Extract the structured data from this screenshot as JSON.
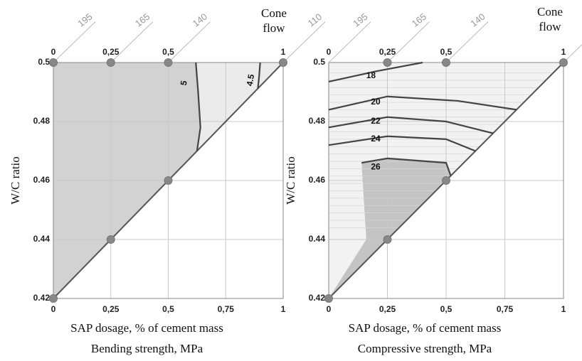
{
  "chart_data": [
    {
      "type": "contour",
      "title": "Bending strength, MPa",
      "x_label": "SAP dosage, % of cement mass",
      "y_label": "W/C ratio",
      "xlim": [
        0,
        1
      ],
      "ylim": [
        0.42,
        0.5
      ],
      "xticks": [
        0,
        {
          "value": 0.25,
          "label": "0,25"
        },
        {
          "value": 0.5,
          "label": "0,5"
        },
        {
          "value": 0.75,
          "label": "0,75"
        },
        1
      ],
      "top_ticks": [
        0,
        {
          "value": 0.25,
          "label": "0,25"
        },
        {
          "value": 0.5,
          "label": "0,5"
        },
        1
      ],
      "yticks": [
        0.42,
        0.44,
        0.46,
        0.48,
        0.5
      ],
      "cone_flow": {
        "label": "Cone flow",
        "ticks": [
          195,
          165,
          140,
          110
        ]
      },
      "levels": [
        5,
        4.5
      ],
      "points": {
        "x": [
          0,
          0.25,
          0.5,
          1,
          0.5,
          0.25,
          0
        ],
        "y": [
          0.5,
          0.5,
          0.5,
          0.5,
          0.46,
          0.44,
          0.42
        ]
      },
      "grid": true
    },
    {
      "type": "contour",
      "title": "Compressive strength, MPa",
      "x_label": "SAP dosage, % of cement mass",
      "y_label": "W/C ratio",
      "xlim": [
        0,
        1
      ],
      "ylim": [
        0.42,
        0.5
      ],
      "xticks": [
        0,
        {
          "value": 0.25,
          "label": "0,25"
        },
        {
          "value": 0.5,
          "label": "0,5"
        },
        {
          "value": 0.75,
          "label": "0,75"
        },
        1
      ],
      "top_ticks": [
        0,
        {
          "value": 0.25,
          "label": "0,25"
        },
        {
          "value": 0.5,
          "label": "0,5"
        },
        1
      ],
      "yticks": [
        0.42,
        0.44,
        0.46,
        0.48,
        0.5
      ],
      "cone_flow": {
        "label": "Cone flow",
        "ticks": [
          195,
          165,
          140,
          110
        ]
      },
      "levels": [
        18,
        20,
        22,
        24,
        26
      ],
      "points": {
        "x": [
          0.25,
          0.5,
          1,
          0.5,
          0.25,
          0
        ],
        "y": [
          0.5,
          0.5,
          0.5,
          0.46,
          0.44,
          0.42
        ]
      },
      "grid": true
    }
  ]
}
